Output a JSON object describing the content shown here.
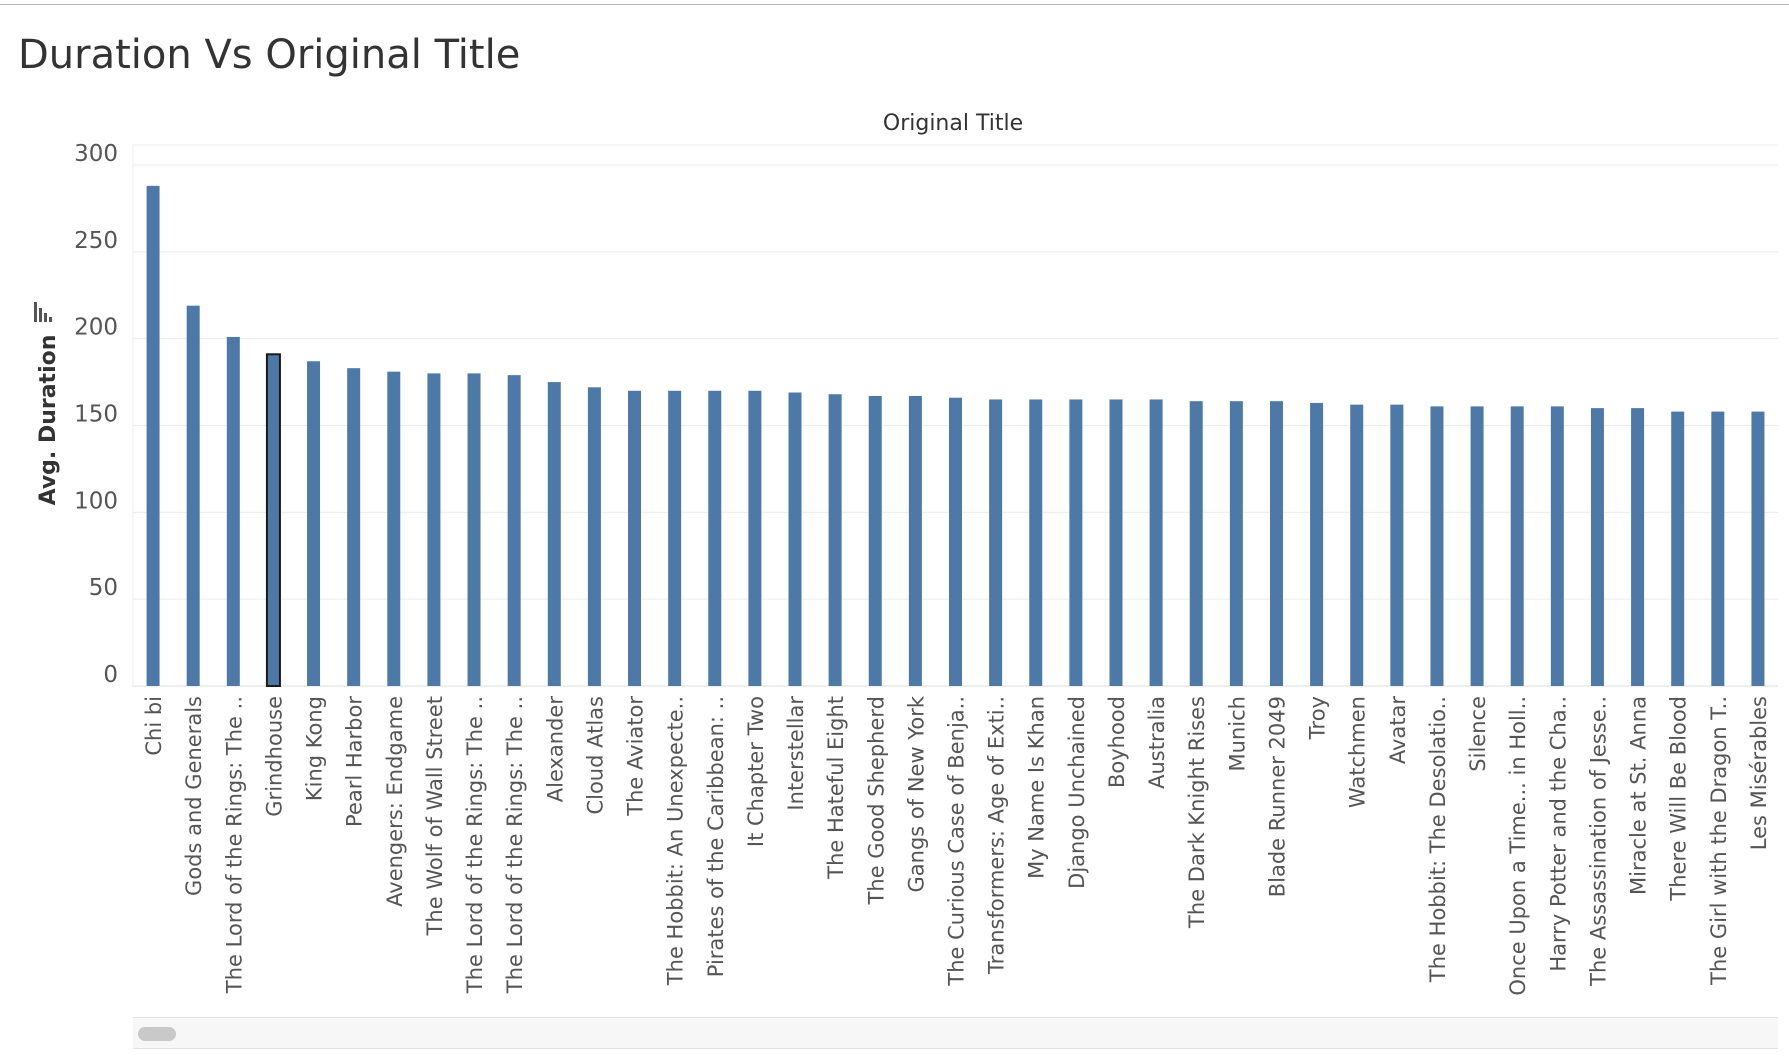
{
  "page_title": "Duration Vs Original Title",
  "colors": {
    "bar": "#4e79a7",
    "bar_selected_outline": "#1a1a1a",
    "grid": "#ececec",
    "text": "#555555"
  },
  "icons": {
    "sort": "sort-descending-icon"
  },
  "chart_data": {
    "type": "bar",
    "title": "Original Title",
    "xlabel": "Original Title",
    "ylabel": "Avg. Duration",
    "ylim": [
      0,
      300
    ],
    "yticks": [
      0,
      50,
      100,
      150,
      200,
      250,
      300
    ],
    "grid": true,
    "legend": "none",
    "selected_category": "Grindhouse",
    "categories": [
      "Chi bi",
      "Gods and Generals",
      "The Lord of the Rings: The ..",
      "Grindhouse",
      "King Kong",
      "Pearl Harbor",
      "Avengers: Endgame",
      "The Wolf of Wall Street",
      "The Lord of the Rings: The ..",
      "The Lord of the Rings: The ..",
      "Alexander",
      "Cloud Atlas",
      "The Aviator",
      "The Hobbit: An Unexpecte..",
      "Pirates of the Caribbean: ..",
      "It Chapter Two",
      "Interstellar",
      "The Hateful Eight",
      "The Good Shepherd",
      "Gangs of New York",
      "The Curious Case of Benja..",
      "Transformers: Age of Exti..",
      "My Name Is Khan",
      "Django Unchained",
      "Boyhood",
      "Australia",
      "The Dark Knight Rises",
      "Munich",
      "Blade Runner 2049",
      "Troy",
      "Watchmen",
      "Avatar",
      "The Hobbit: The Desolatio..",
      "Silence",
      "Once Upon a Time... in Holl..",
      "Harry Potter and the Cha..",
      "The Assassination of Jesse..",
      "Miracle at St. Anna",
      "There Will Be Blood",
      "The Girl with the Dragon T..",
      "Les Misérables"
    ],
    "values": [
      288,
      219,
      201,
      191,
      187,
      183,
      181,
      180,
      180,
      179,
      175,
      172,
      170,
      170,
      170,
      170,
      169,
      168,
      167,
      167,
      166,
      165,
      165,
      165,
      165,
      165,
      164,
      164,
      164,
      163,
      162,
      162,
      161,
      161,
      161,
      161,
      160,
      160,
      158,
      158,
      158
    ]
  }
}
